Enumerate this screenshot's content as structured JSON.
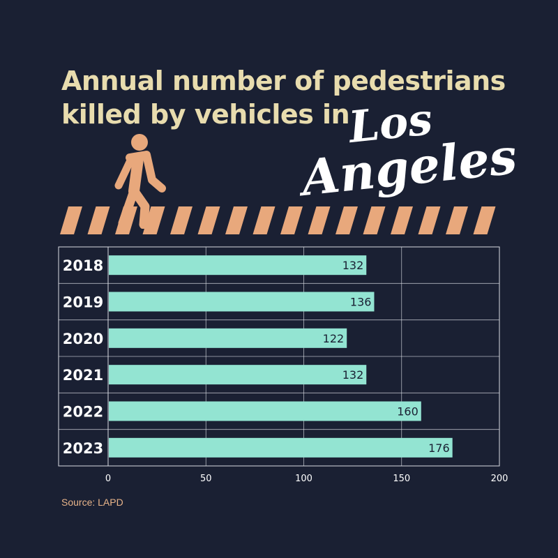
{
  "title": {
    "line1": "Annual number of pedestrians",
    "line2": "killed by vehicles in",
    "city_line1": "Los",
    "city_line2": "Angeles"
  },
  "source": "Source: LAPD",
  "colors": {
    "background": "#1a2033",
    "title": "#e8dcae",
    "bar": "#93e4d2",
    "accent": "#e8a87c",
    "grid": "#d9dce3",
    "value_label": "#1a2033",
    "axis_text": "#ffffff"
  },
  "icons": {
    "walker": "pedestrian-walking-icon",
    "crosswalk": "crosswalk-stripes-icon"
  },
  "chart_data": {
    "type": "bar",
    "orientation": "horizontal",
    "categories": [
      "2018",
      "2019",
      "2020",
      "2021",
      "2022",
      "2023"
    ],
    "values": [
      132,
      136,
      122,
      132,
      160,
      176
    ],
    "title": "Annual number of pedestrians killed by vehicles in Los Angeles",
    "xlabel": "",
    "ylabel": "",
    "xlim": [
      0,
      200
    ],
    "xticks": [
      0,
      50,
      100,
      150,
      200
    ],
    "grid": true,
    "legend": "none"
  }
}
